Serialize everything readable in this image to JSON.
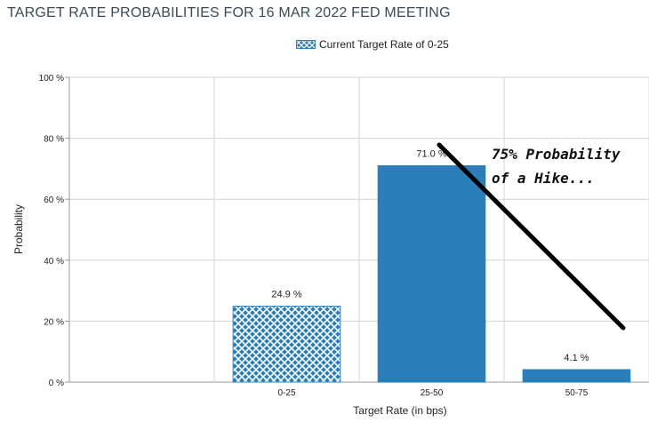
{
  "title": "TARGET RATE PROBABILITIES FOR 16 MAR 2022 FED MEETING",
  "legend": {
    "label": "Current Target Rate of 0-25"
  },
  "annotation": {
    "line1": "75% Probability",
    "line2": "of a Hike..."
  },
  "colors": {
    "bar": "#2a7fba",
    "hatch_bg": "#2a7fba",
    "hatch_line": "#ffffff",
    "grid": "#d4d4d4",
    "annotation_line": "#000000"
  },
  "chart_data": {
    "type": "bar",
    "title": "TARGET RATE PROBABILITIES FOR 16 MAR 2022 FED MEETING",
    "xlabel": "Target Rate (in bps)",
    "ylabel": "Probability",
    "ylim": [
      0,
      100
    ],
    "yticks": [
      "0 %",
      "20 %",
      "40 %",
      "60 %",
      "80 %",
      "100 %"
    ],
    "grid": true,
    "legend_position": "top-center",
    "categories": [
      "0-25",
      "25-50",
      "50-75"
    ],
    "values": [
      24.9,
      71.0,
      4.1
    ],
    "data_labels": [
      "24.9 %",
      "71.0 %",
      "4.1 %"
    ],
    "highlighted_category": "0-25"
  }
}
